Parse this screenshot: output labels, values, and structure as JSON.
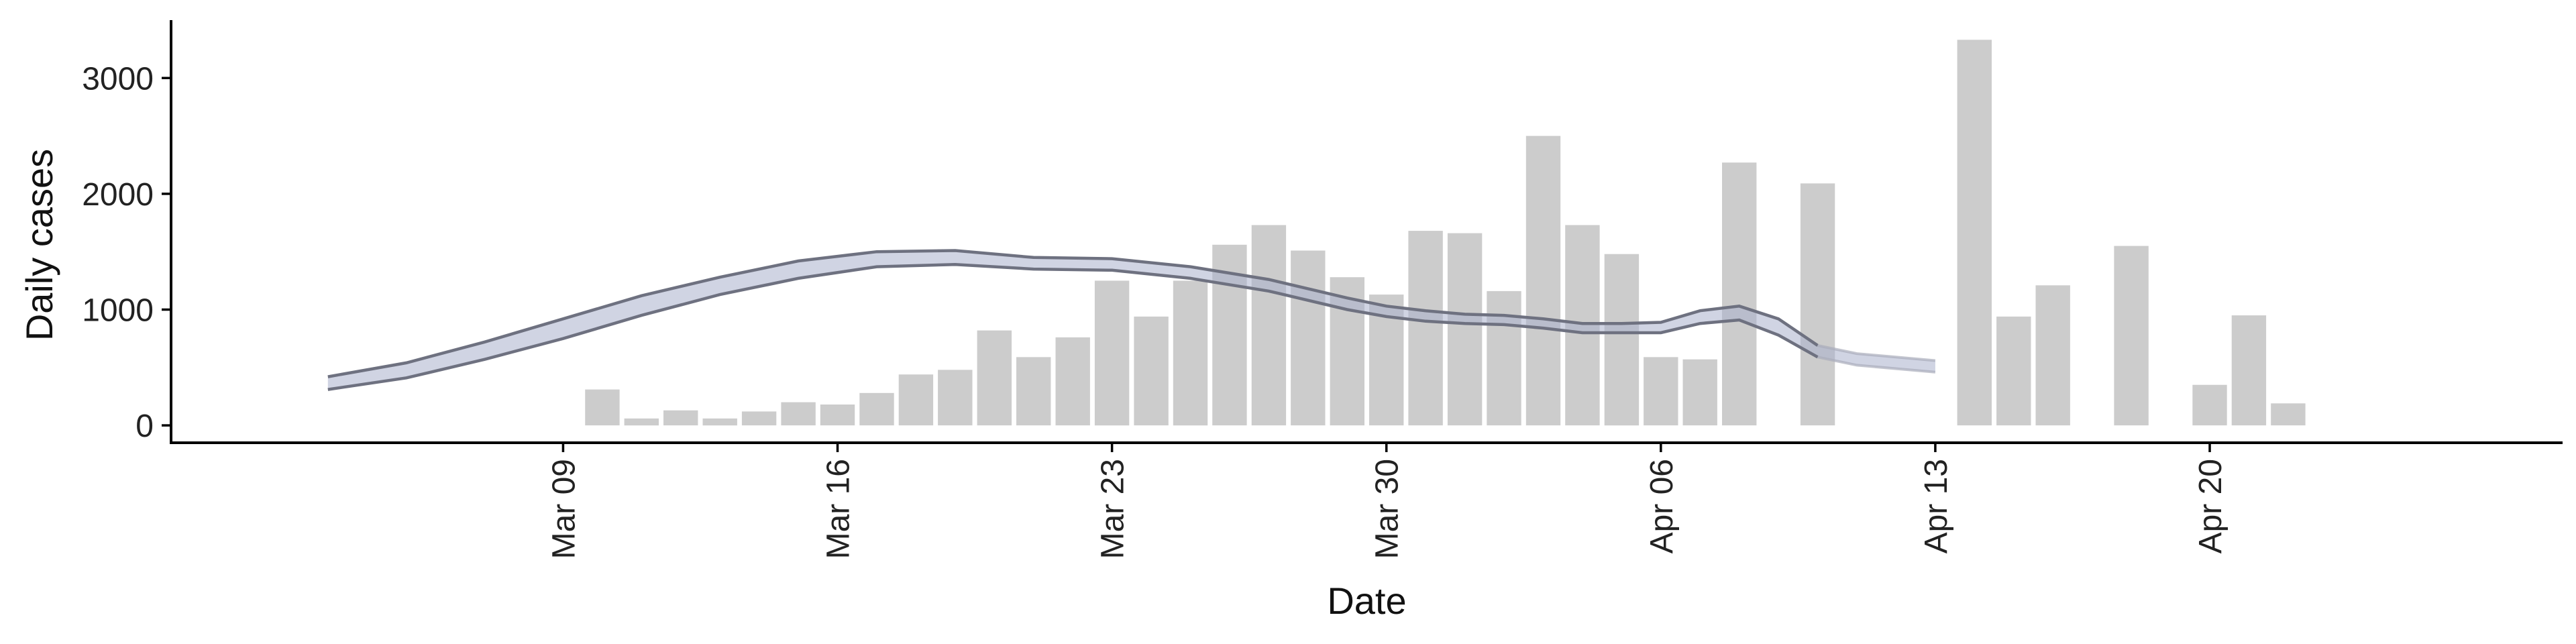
{
  "chart_data": {
    "type": "bar",
    "xlabel": "Date",
    "ylabel": "Daily cases",
    "x_tick_labels": [
      "Mar 09",
      "Mar 16",
      "Mar 23",
      "Mar 30",
      "Apr 06",
      "Apr 13",
      "Apr 20"
    ],
    "x_tick_dates": [
      "2020-03-09",
      "2020-03-16",
      "2020-03-23",
      "2020-03-30",
      "2020-04-06",
      "2020-04-13",
      "2020-04-20"
    ],
    "y_ticks": [
      0,
      1000,
      2000,
      3000
    ],
    "xlim": [
      "2020-02-28",
      "2020-04-29"
    ],
    "ylim": [
      -150,
      3500
    ],
    "grid": false,
    "bars": {
      "color": "#cccccc",
      "dates": [
        "2020-03-10",
        "2020-03-11",
        "2020-03-12",
        "2020-03-13",
        "2020-03-14",
        "2020-03-15",
        "2020-03-16",
        "2020-03-17",
        "2020-03-18",
        "2020-03-19",
        "2020-03-20",
        "2020-03-21",
        "2020-03-22",
        "2020-03-23",
        "2020-03-24",
        "2020-03-25",
        "2020-03-26",
        "2020-03-27",
        "2020-03-28",
        "2020-03-29",
        "2020-03-30",
        "2020-03-31",
        "2020-04-01",
        "2020-04-02",
        "2020-04-03",
        "2020-04-04",
        "2020-04-05",
        "2020-04-06",
        "2020-04-07",
        "2020-04-08",
        "2020-04-10",
        "2020-04-14",
        "2020-04-15",
        "2020-04-16",
        "2020-04-18",
        "2020-04-20",
        "2020-04-21",
        "2020-04-22"
      ],
      "values": [
        310,
        60,
        130,
        60,
        120,
        200,
        180,
        280,
        440,
        480,
        820,
        590,
        760,
        1250,
        940,
        1250,
        1560,
        1730,
        1510,
        1280,
        1130,
        1680,
        1660,
        1160,
        2500,
        1730,
        1480,
        590,
        570,
        2270,
        2090,
        3330,
        940,
        1210,
        1550,
        350,
        950,
        190
      ]
    },
    "band": {
      "color": "#aab0cc",
      "dates": [
        "2020-03-03",
        "2020-03-05",
        "2020-03-07",
        "2020-03-09",
        "2020-03-11",
        "2020-03-13",
        "2020-03-15",
        "2020-03-17",
        "2020-03-19",
        "2020-03-21",
        "2020-03-23",
        "2020-03-25",
        "2020-03-27",
        "2020-03-29",
        "2020-03-30",
        "2020-03-31",
        "2020-04-01",
        "2020-04-02",
        "2020-04-03",
        "2020-04-04",
        "2020-04-05",
        "2020-04-06",
        "2020-04-07",
        "2020-04-08",
        "2020-04-09",
        "2020-04-10",
        "2020-04-11",
        "2020-04-13"
      ],
      "upper": [
        420,
        540,
        720,
        920,
        1120,
        1280,
        1420,
        1500,
        1510,
        1450,
        1440,
        1370,
        1260,
        1100,
        1030,
        990,
        960,
        950,
        920,
        880,
        880,
        890,
        990,
        1030,
        920,
        690,
        620,
        560
      ],
      "lower": [
        310,
        410,
        570,
        750,
        950,
        1130,
        1270,
        1370,
        1390,
        1350,
        1340,
        1270,
        1160,
        1000,
        940,
        900,
        880,
        870,
        840,
        800,
        800,
        800,
        880,
        910,
        780,
        590,
        520,
        460
      ]
    }
  }
}
